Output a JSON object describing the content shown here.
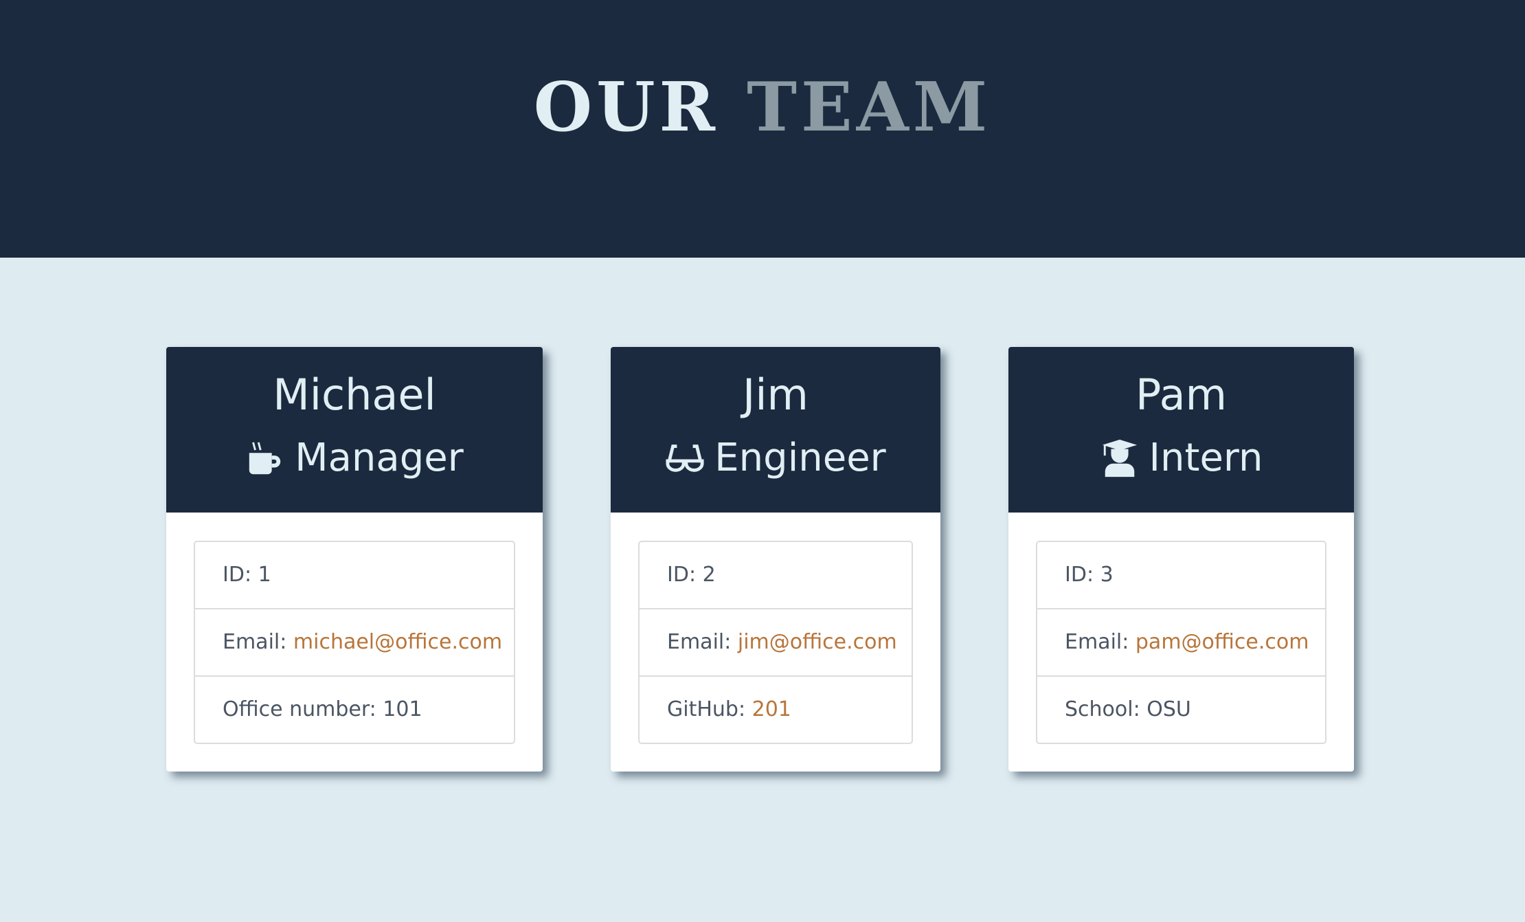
{
  "header": {
    "title_main": "OUR",
    "title_accent": "TEAM"
  },
  "colors": {
    "header_bg": "#1b2a3e",
    "page_bg": "#deebf0",
    "link": "#b8753a"
  },
  "team": [
    {
      "name": "Michael",
      "role": "Manager",
      "icon": "mug-hot-icon",
      "id": "ID: 1",
      "email_label": "Email: ",
      "email": "michael@office.com",
      "extra_label": "Office number: 101",
      "extra_value": ""
    },
    {
      "name": "Jim",
      "role": "Engineer",
      "icon": "glasses-icon",
      "id": "ID: 2",
      "email_label": "Email: ",
      "email": "jim@office.com",
      "extra_label": "GitHub: ",
      "extra_value": "201"
    },
    {
      "name": "Pam",
      "role": "Intern",
      "icon": "user-graduate-icon",
      "id": "ID: 3",
      "email_label": "Email: ",
      "email": "pam@office.com",
      "extra_label": "School: OSU",
      "extra_value": ""
    }
  ]
}
